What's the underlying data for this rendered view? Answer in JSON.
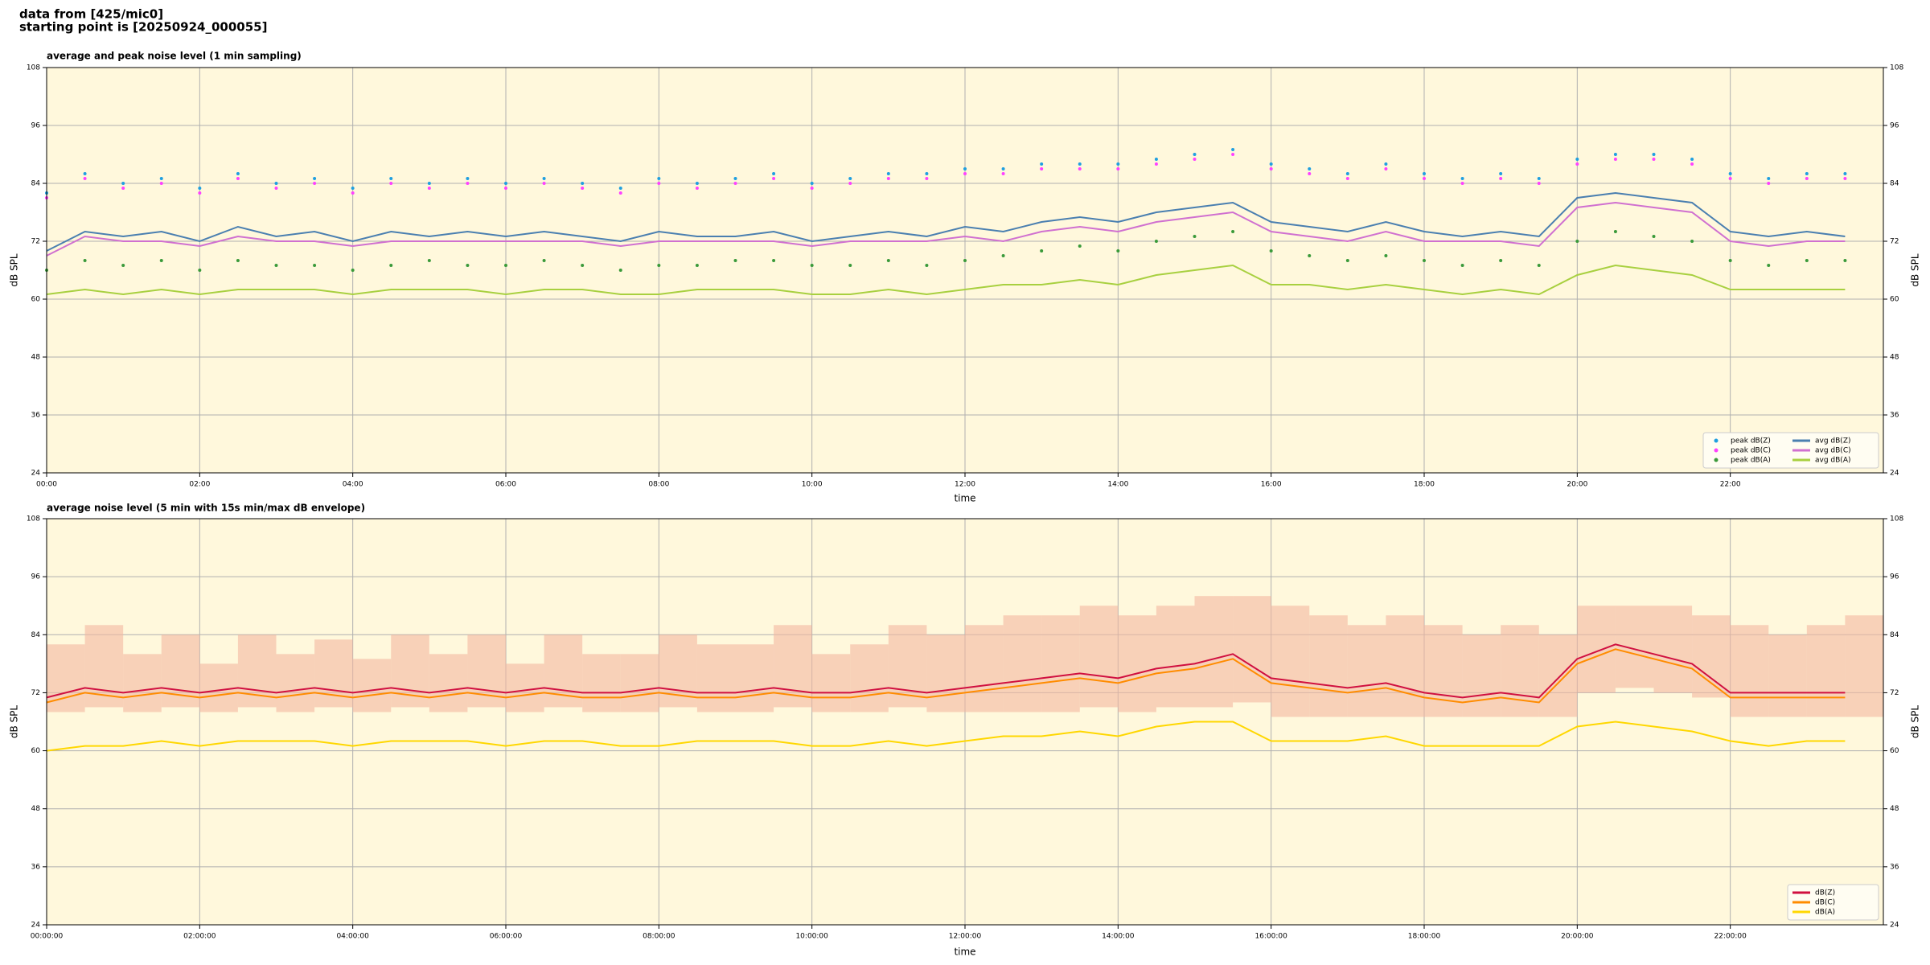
{
  "header": {
    "lines": [
      "data from [425/mic0]",
      "starting point is [20250924_000055]"
    ]
  },
  "chart_data": [
    {
      "type": "line",
      "title": "average and peak noise level (1 min sampling)",
      "xlabel": "time",
      "ylabel": "dB SPL",
      "x": [
        0,
        30,
        60,
        90,
        120,
        150,
        180,
        210,
        240,
        270,
        300,
        330,
        360,
        390,
        420,
        450,
        480,
        510,
        540,
        570,
        600,
        630,
        660,
        690,
        720,
        750,
        780,
        810,
        840,
        870,
        900,
        930,
        960,
        990,
        1020,
        1050,
        1080,
        1110,
        1140,
        1170,
        1200,
        1230,
        1260,
        1290,
        1320,
        1350,
        1380,
        1410
      ],
      "xlim": [
        0,
        1440
      ],
      "xticks": [
        {
          "value": 0,
          "label": "00:00"
        },
        {
          "value": 120,
          "label": "02:00"
        },
        {
          "value": 240,
          "label": "04:00"
        },
        {
          "value": 360,
          "label": "06:00"
        },
        {
          "value": 480,
          "label": "08:00"
        },
        {
          "value": 600,
          "label": "10:00"
        },
        {
          "value": 720,
          "label": "12:00"
        },
        {
          "value": 840,
          "label": "14:00"
        },
        {
          "value": 960,
          "label": "16:00"
        },
        {
          "value": 1080,
          "label": "18:00"
        },
        {
          "value": 1200,
          "label": "20:00"
        },
        {
          "value": 1320,
          "label": "22:00"
        }
      ],
      "ylim": [
        24,
        108
      ],
      "yticks": [
        24,
        36,
        48,
        60,
        72,
        84,
        96,
        108
      ],
      "grid": true,
      "legend": "lower right",
      "legend_columns": 2,
      "series": [
        {
          "name": "peak dB(Z)",
          "kind": "scatter",
          "color": "#1f9fe0",
          "values": [
            82,
            86,
            84,
            85,
            83,
            86,
            84,
            85,
            83,
            85,
            84,
            85,
            84,
            85,
            84,
            83,
            85,
            84,
            85,
            86,
            84,
            85,
            86,
            86,
            87,
            87,
            88,
            88,
            88,
            89,
            90,
            91,
            88,
            87,
            86,
            88,
            86,
            85,
            86,
            85,
            89,
            90,
            90,
            89,
            86,
            85,
            86,
            86
          ]
        },
        {
          "name": "peak dB(C)",
          "kind": "scatter",
          "color": "#ff40ff",
          "values": [
            81,
            85,
            83,
            84,
            82,
            85,
            83,
            84,
            82,
            84,
            83,
            84,
            83,
            84,
            83,
            82,
            84,
            83,
            84,
            85,
            83,
            84,
            85,
            85,
            86,
            86,
            87,
            87,
            87,
            88,
            89,
            90,
            87,
            86,
            85,
            87,
            85,
            84,
            85,
            84,
            88,
            89,
            89,
            88,
            85,
            84,
            85,
            85
          ]
        },
        {
          "name": "peak dB(A)",
          "kind": "scatter",
          "color": "#3a9a3a",
          "values": [
            66,
            68,
            67,
            68,
            66,
            68,
            67,
            67,
            66,
            67,
            68,
            67,
            67,
            68,
            67,
            66,
            67,
            67,
            68,
            68,
            67,
            67,
            68,
            67,
            68,
            69,
            70,
            71,
            70,
            72,
            73,
            74,
            70,
            69,
            68,
            69,
            68,
            67,
            68,
            67,
            72,
            74,
            73,
            72,
            68,
            67,
            68,
            68
          ]
        },
        {
          "name": "avg dB(Z)",
          "kind": "line",
          "color": "#4a7fb0",
          "values": [
            70,
            74,
            73,
            74,
            72,
            75,
            73,
            74,
            72,
            74,
            73,
            74,
            73,
            74,
            73,
            72,
            74,
            73,
            73,
            74,
            72,
            73,
            74,
            73,
            75,
            74,
            76,
            77,
            76,
            78,
            79,
            80,
            76,
            75,
            74,
            76,
            74,
            73,
            74,
            73,
            81,
            82,
            81,
            80,
            74,
            73,
            74,
            73
          ]
        },
        {
          "name": "avg dB(C)",
          "kind": "line",
          "color": "#d070d0",
          "values": [
            69,
            73,
            72,
            72,
            71,
            73,
            72,
            72,
            71,
            72,
            72,
            72,
            72,
            72,
            72,
            71,
            72,
            72,
            72,
            72,
            71,
            72,
            72,
            72,
            73,
            72,
            74,
            75,
            74,
            76,
            77,
            78,
            74,
            73,
            72,
            74,
            72,
            72,
            72,
            71,
            79,
            80,
            79,
            78,
            72,
            71,
            72,
            72
          ]
        },
        {
          "name": "avg dB(A)",
          "kind": "line",
          "color": "#a8d040",
          "values": [
            61,
            62,
            61,
            62,
            61,
            62,
            62,
            62,
            61,
            62,
            62,
            62,
            61,
            62,
            62,
            61,
            61,
            62,
            62,
            62,
            61,
            61,
            62,
            61,
            62,
            63,
            63,
            64,
            63,
            65,
            66,
            67,
            63,
            63,
            62,
            63,
            62,
            61,
            62,
            61,
            65,
            67,
            66,
            65,
            62,
            62,
            62,
            62
          ]
        }
      ]
    },
    {
      "type": "line",
      "title": "average noise level (5 min with 15s min/max dB envelope)",
      "xlabel": "time",
      "ylabel": "dB SPL",
      "x": [
        0,
        30,
        60,
        90,
        120,
        150,
        180,
        210,
        240,
        270,
        300,
        330,
        360,
        390,
        420,
        450,
        480,
        510,
        540,
        570,
        600,
        630,
        660,
        690,
        720,
        750,
        780,
        810,
        840,
        870,
        900,
        930,
        960,
        990,
        1020,
        1050,
        1080,
        1110,
        1140,
        1170,
        1200,
        1230,
        1260,
        1290,
        1320,
        1350,
        1380,
        1410
      ],
      "xlim": [
        0,
        1440
      ],
      "xticks": [
        {
          "value": 0,
          "label": "00:00:00"
        },
        {
          "value": 120,
          "label": "02:00:00"
        },
        {
          "value": 240,
          "label": "04:00:00"
        },
        {
          "value": 360,
          "label": "06:00:00"
        },
        {
          "value": 480,
          "label": "08:00:00"
        },
        {
          "value": 600,
          "label": "10:00:00"
        },
        {
          "value": 720,
          "label": "12:00:00"
        },
        {
          "value": 840,
          "label": "14:00:00"
        },
        {
          "value": 960,
          "label": "16:00:00"
        },
        {
          "value": 1080,
          "label": "18:00:00"
        },
        {
          "value": 1200,
          "label": "20:00:00"
        },
        {
          "value": 1320,
          "label": "22:00:00"
        }
      ],
      "ylim": [
        24,
        108
      ],
      "yticks": [
        24,
        36,
        48,
        60,
        72,
        84,
        96,
        108
      ],
      "grid": true,
      "legend": "lower right",
      "legend_columns": 1,
      "envelope": {
        "color": "#f4b8a0",
        "low": [
          68,
          69,
          68,
          69,
          68,
          69,
          68,
          69,
          68,
          69,
          68,
          69,
          68,
          69,
          68,
          68,
          69,
          68,
          68,
          69,
          68,
          68,
          69,
          68,
          68,
          68,
          68,
          69,
          68,
          69,
          69,
          70,
          67,
          67,
          67,
          67,
          67,
          67,
          67,
          67,
          72,
          73,
          72,
          71,
          67,
          67,
          67,
          67
        ],
        "high": [
          82,
          86,
          80,
          84,
          78,
          84,
          80,
          83,
          79,
          84,
          80,
          84,
          78,
          84,
          80,
          80,
          84,
          82,
          82,
          86,
          80,
          82,
          86,
          84,
          86,
          88,
          88,
          90,
          88,
          90,
          92,
          92,
          90,
          88,
          86,
          88,
          86,
          84,
          86,
          84,
          90,
          90,
          90,
          88,
          86,
          84,
          86,
          88
        ]
      },
      "series": [
        {
          "name": "dB(Z)",
          "kind": "line",
          "color": "#d01040",
          "values": [
            71,
            73,
            72,
            73,
            72,
            73,
            72,
            73,
            72,
            73,
            72,
            73,
            72,
            73,
            72,
            72,
            73,
            72,
            72,
            73,
            72,
            72,
            73,
            72,
            73,
            74,
            75,
            76,
            75,
            77,
            78,
            80,
            75,
            74,
            73,
            74,
            72,
            71,
            72,
            71,
            79,
            82,
            80,
            78,
            72,
            72,
            72,
            72
          ]
        },
        {
          "name": "dB(C)",
          "kind": "line",
          "color": "#ff8c00",
          "values": [
            70,
            72,
            71,
            72,
            71,
            72,
            71,
            72,
            71,
            72,
            71,
            72,
            71,
            72,
            71,
            71,
            72,
            71,
            71,
            72,
            71,
            71,
            72,
            71,
            72,
            73,
            74,
            75,
            74,
            76,
            77,
            79,
            74,
            73,
            72,
            73,
            71,
            70,
            71,
            70,
            78,
            81,
            79,
            77,
            71,
            71,
            71,
            71
          ]
        },
        {
          "name": "dB(A)",
          "kind": "line",
          "color": "#ffd700",
          "values": [
            60,
            61,
            61,
            62,
            61,
            62,
            62,
            62,
            61,
            62,
            62,
            62,
            61,
            62,
            62,
            61,
            61,
            62,
            62,
            62,
            61,
            61,
            62,
            61,
            62,
            63,
            63,
            64,
            63,
            65,
            66,
            66,
            62,
            62,
            62,
            63,
            61,
            61,
            61,
            61,
            65,
            66,
            65,
            64,
            62,
            61,
            62,
            62
          ]
        }
      ]
    }
  ]
}
